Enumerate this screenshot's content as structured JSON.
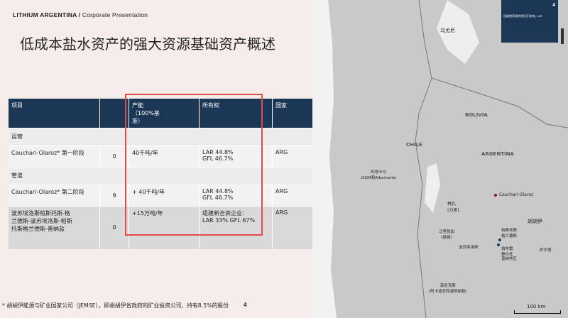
{
  "header": {
    "brand": "LITHIUM ARGENTINA",
    "sep": " / ",
    "subtitle": "Corporate Presentation"
  },
  "title": "低成本盐水资产的强大资源基础资产概述",
  "table": {
    "headers": [
      "项目",
      "",
      "产能\n（100%基\n准）",
      "所有权",
      "国家"
    ],
    "sections": [
      {
        "label": "运营",
        "rows": [
          {
            "project": "Cauchari-Olaroz* 第一阶段",
            "num": "0",
            "capacity": "40千吨/年",
            "ownership": "LAR 44.8%\nGFL 46.7%",
            "country": "ARG"
          }
        ]
      },
      {
        "label": "管道",
        "rows": [
          {
            "project": "Cauchari-Olaroz* 第二阶段",
            "num": "9",
            "capacity": "+ 40千吨/年",
            "ownership": "LAR 44.8%\nGFL 46.7%",
            "country": "ARG"
          },
          {
            "project": "波苏埃洛斯帕斯托斯-格\n兰德斯-波苏埃洛斯-帕斯\n托斯格兰德斯-普纳盐",
            "num": "0",
            "capacity": "+15万吨/年",
            "ownership": "组建新合资企业：\nLAR 33% GFL 67%",
            "country": "ARG"
          }
        ]
      }
    ]
  },
  "footnote": "* 胡胡伊能源与矿业国家公司（JEMSE），即胡胡伊省政府的矿业投资公司，持有8.5%的股份",
  "page_number": "4",
  "topbar": {
    "text": "低碳锂资源的领先开发商 | LAR",
    "num": "4"
  },
  "map": {
    "labels": {
      "uyuni": "乌尤尼",
      "bolivia": "BOLIVIA",
      "chile": "CHILE",
      "argentina": "ARGENTINA",
      "atacama": "阿塔卡马\n(SQM和Albemarle)",
      "cauchari": "Cauchari-Olaroz",
      "linkong": "林孔\n(力拓)",
      "maricunga": "马里昆加\n(赣锋)",
      "pozuelos": "波苏埃洛斯",
      "pastos": "帕斯托斯\n格兰德斯",
      "hombre": "翁布雷\n穆尔托",
      "salta": "萨尔塔",
      "jujuy": "胡胡伊",
      "puna": "普纳地区",
      "fenix": "菲尼克斯\n(阿卡迪亚和浦项制铁)"
    },
    "scale": "100 km"
  },
  "colors": {
    "header_bg": "#1c3756",
    "highlight": "#e24b4b",
    "map_land": "#c9c9c9",
    "map_border": "#9a9a9a"
  }
}
